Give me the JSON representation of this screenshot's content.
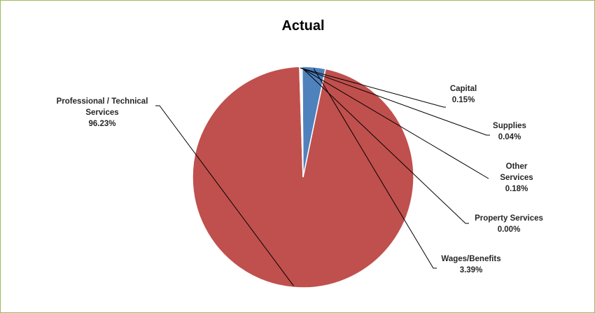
{
  "chart_data": {
    "type": "pie",
    "title": "Actual",
    "slices": [
      {
        "name": "Wages/Benefits",
        "value": 3.39,
        "pct_label": "3.39%",
        "color": "#4f81bd"
      },
      {
        "name": "Professional / Technical Services",
        "value": 96.23,
        "pct_label": "96.23%",
        "color": "#c0504d"
      },
      {
        "name": "Capital",
        "value": 0.15,
        "pct_label": "0.15%",
        "color": "#9bbb59"
      },
      {
        "name": "Supplies",
        "value": 0.04,
        "pct_label": "0.04%",
        "color": "#8064a2"
      },
      {
        "name": "Other Services",
        "value": 0.18,
        "pct_label": "0.18%",
        "color": "#4bacc6"
      },
      {
        "name": "Property Services",
        "value": 0.0,
        "pct_label": "0.00%",
        "color": "#f79646"
      }
    ]
  },
  "frame": {
    "border_color": "#9bbb59"
  }
}
